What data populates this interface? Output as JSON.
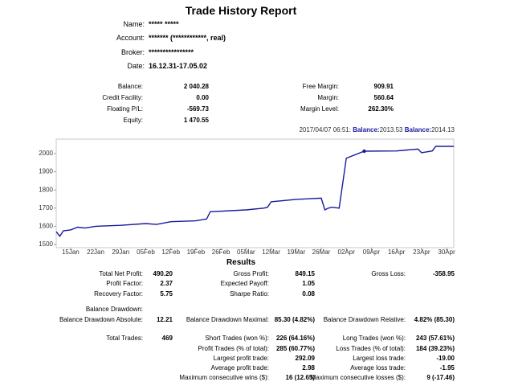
{
  "header": {
    "title": "Trade History Report",
    "fields": [
      {
        "label": "Name:",
        "value": "***** *****"
      },
      {
        "label": "Account:",
        "value": "******* (************, real)"
      },
      {
        "label": "Broker:",
        "value": "****************"
      },
      {
        "label": "Date:",
        "value": "16.12.31-17.05.02"
      }
    ]
  },
  "summary": [
    [
      {
        "label": "Balance:",
        "value": "2 040.28"
      },
      {
        "label": "Free Margin:",
        "value": "909.91"
      }
    ],
    [
      {
        "label": "Credit Facility:",
        "value": "0.00"
      },
      {
        "label": "Margin:",
        "value": "560.64"
      }
    ],
    [
      {
        "label": "Floating P/L:",
        "value": "-569.73"
      },
      {
        "label": "Margin Level:",
        "value": "262.30%"
      }
    ],
    [
      {
        "label": "Equity:",
        "value": "1 470.55"
      },
      null
    ]
  ],
  "chart_caption": {
    "time": "2017/04/07 06:51:",
    "label1": "Balance:",
    "value1": "2013.53",
    "label2": "Balance:",
    "value2": "2014.13"
  },
  "chart_data": {
    "type": "line",
    "color": "#1a1a9c",
    "xlim": [
      "2017-01-11",
      "2017-05-02"
    ],
    "ylim": [
      1482,
      2080
    ],
    "yticks": [
      1500,
      1600,
      1700,
      1800,
      1900,
      2000
    ],
    "xticks": [
      {
        "value": "2017-01-15",
        "label": "15Jan"
      },
      {
        "value": "2017-01-22",
        "label": "22Jan"
      },
      {
        "value": "2017-01-29",
        "label": "29Jan"
      },
      {
        "value": "2017-02-05",
        "label": "05Feb"
      },
      {
        "value": "2017-02-12",
        "label": "12Feb"
      },
      {
        "value": "2017-02-19",
        "label": "19Feb"
      },
      {
        "value": "2017-02-26",
        "label": "26Feb"
      },
      {
        "value": "2017-03-05",
        "label": "05Mar"
      },
      {
        "value": "2017-03-12",
        "label": "12Mar"
      },
      {
        "value": "2017-03-19",
        "label": "19Mar"
      },
      {
        "value": "2017-03-26",
        "label": "26Mar"
      },
      {
        "value": "2017-04-02",
        "label": "02Apr"
      },
      {
        "value": "2017-04-09",
        "label": "09Apr"
      },
      {
        "value": "2017-04-16",
        "label": "16Apr"
      },
      {
        "value": "2017-04-23",
        "label": "23Apr"
      },
      {
        "value": "2017-04-30",
        "label": "30Apr"
      }
    ],
    "x": [
      "2017-01-11",
      "2017-01-12",
      "2017-01-13",
      "2017-01-15",
      "2017-01-17",
      "2017-01-19",
      "2017-01-22",
      "2017-01-29",
      "2017-02-05",
      "2017-02-08",
      "2017-02-12",
      "2017-02-19",
      "2017-02-22",
      "2017-02-23",
      "2017-03-05",
      "2017-03-10",
      "2017-03-11",
      "2017-03-12",
      "2017-03-19",
      "2017-03-26",
      "2017-03-27",
      "2017-03-28",
      "2017-03-29",
      "2017-03-31",
      "2017-04-02",
      "2017-04-07",
      "2017-04-16",
      "2017-04-22",
      "2017-04-23",
      "2017-04-26",
      "2017-04-27",
      "2017-05-02"
    ],
    "series": [
      {
        "name": "Balance",
        "color": "#1a1a9c",
        "values": [
          1570,
          1545,
          1575,
          1580,
          1595,
          1590,
          1600,
          1605,
          1615,
          1610,
          1625,
          1630,
          1640,
          1680,
          1690,
          1700,
          1705,
          1735,
          1748,
          1755,
          1690,
          1700,
          1705,
          1700,
          1975,
          2013.53,
          2015,
          2025,
          2005,
          2015,
          2040,
          2040
        ]
      }
    ],
    "marker": {
      "x": "2017-04-07",
      "value": 2013.53
    }
  },
  "results_title": "Results",
  "results": [
    [
      {
        "label": "Total Net Profit:",
        "value": "490.20"
      },
      {
        "label": "Gross Profit:",
        "value": "849.15"
      },
      {
        "label": "Gross Loss:",
        "value": "-358.95"
      }
    ],
    [
      {
        "label": "Profit Factor:",
        "value": "2.37"
      },
      {
        "label": "Expected Payoff:",
        "value": "1.05"
      },
      null
    ],
    [
      {
        "label": "Recovery Factor:",
        "value": "5.75"
      },
      {
        "label": "Sharpe Ratio:",
        "value": "0.08"
      },
      null
    ],
    [
      {
        "label": "Balance Drawdown:"
      },
      null,
      null
    ],
    [
      {
        "label": "Balance Drawdown Absolute:",
        "value": "12.21"
      },
      {
        "label": "Balance Drawdown Maximal:",
        "value": "85.30 (4.82%)"
      },
      {
        "label": "Balance Drawdown Relative:",
        "value": "4.82% (85.30)"
      }
    ],
    [
      {
        "label": "Total Trades:",
        "value": "469"
      },
      {
        "label": "Short Trades (won %):",
        "value": "226 (64.16%)"
      },
      {
        "label": "Long Trades (won %):",
        "value": "243 (57.61%)"
      }
    ],
    [
      null,
      {
        "label": "Profit Trades (% of total):",
        "value": "285 (60.77%)"
      },
      {
        "label": "Loss Trades (% of total):",
        "value": "184 (39.23%)"
      }
    ],
    [
      null,
      {
        "label": "Largest profit trade:",
        "value": "292.09"
      },
      {
        "label": "Largest loss trade:",
        "value": "-19.00"
      }
    ],
    [
      null,
      {
        "label": "Average profit trade:",
        "value": "2.98"
      },
      {
        "label": "Average loss trade:",
        "value": "-1.95"
      }
    ],
    [
      null,
      {
        "label": "Maximum consecutive wins ($):",
        "value": "16 (12.65)"
      },
      {
        "label": "Maximum consecutive losses ($):",
        "value": "9 (-17.46)"
      }
    ]
  ]
}
